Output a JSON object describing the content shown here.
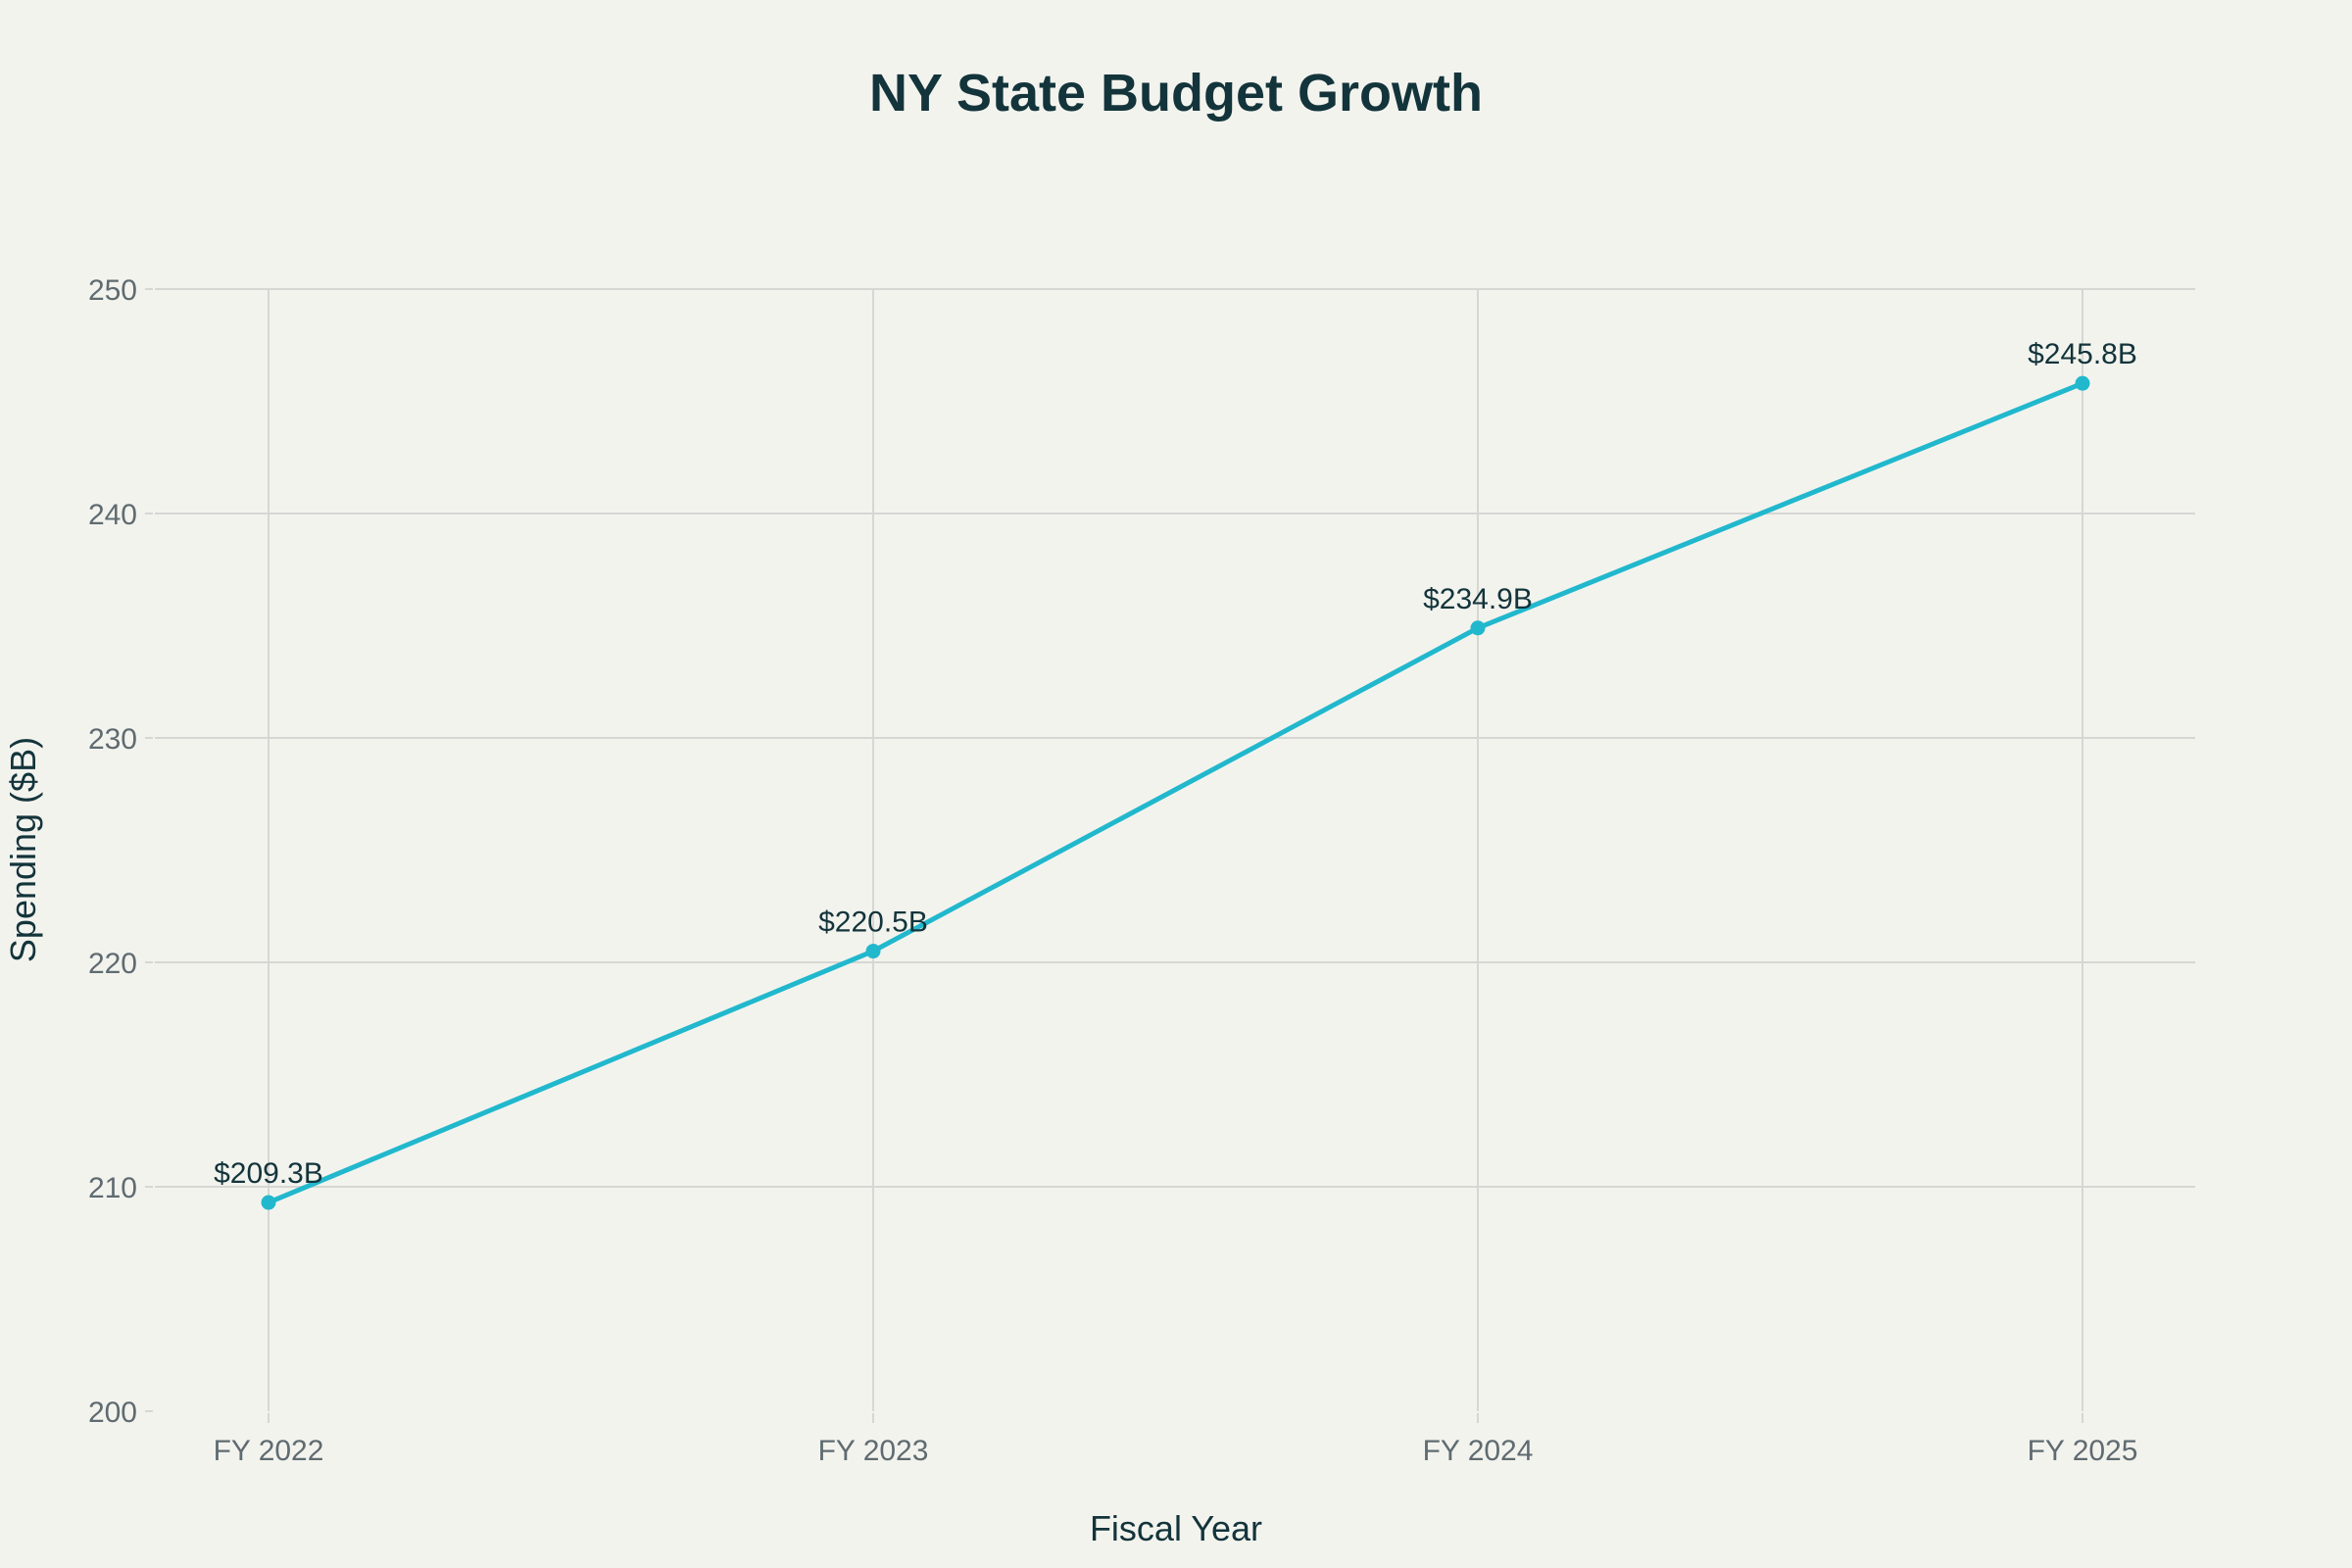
{
  "chart_data": {
    "type": "line",
    "title": "NY State Budget Growth",
    "xlabel": "Fiscal Year",
    "ylabel": "Spending ($B)",
    "categories": [
      "FY 2022",
      "FY 2023",
      "FY 2024",
      "FY 2025"
    ],
    "series": [
      {
        "values": [
          209.3,
          220.5,
          234.9,
          245.8
        ],
        "labels": [
          "$209.3B",
          "$220.5B",
          "$234.9B",
          "$245.8B"
        ]
      }
    ],
    "ylim": [
      200,
      250
    ],
    "yticks": [
      200,
      210,
      220,
      230,
      240,
      250
    ],
    "grid": true,
    "markers": true,
    "colors": {
      "background": "#f3f3ee",
      "line": "#21b8cd",
      "grid": "#d6d6d3",
      "title": "#13343b",
      "tick_label": "#5f6b70"
    }
  }
}
